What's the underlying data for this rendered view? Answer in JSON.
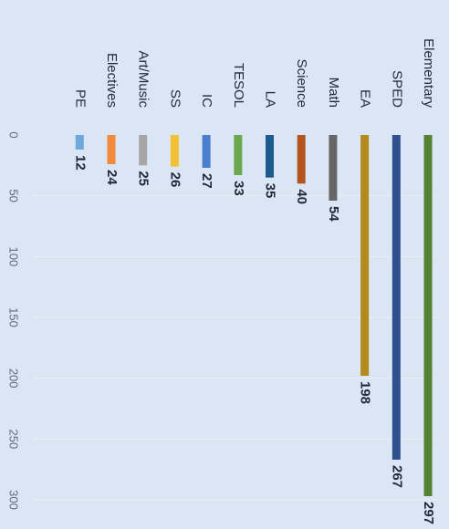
{
  "chart_data": {
    "type": "bar",
    "orientation": "horizontal",
    "display_rotation": "90deg-clockwise",
    "categories": [
      "Elementary",
      "SPED",
      "EA",
      "Math",
      "Science",
      "LA",
      "TESOL",
      "IC",
      "SS",
      "Art/Music",
      "Electives",
      "PE"
    ],
    "values": [
      297,
      267,
      198,
      54,
      40,
      35,
      33,
      27,
      26,
      25,
      24,
      12
    ],
    "colors": [
      "#548235",
      "#2f4f8f",
      "#b38a1e",
      "#666666",
      "#b3541e",
      "#1f5a8c",
      "#6aa84f",
      "#4a7fd0",
      "#f2c034",
      "#a6a6a6",
      "#f08a3c",
      "#6fa8dc"
    ],
    "xlim": [
      0,
      300
    ],
    "ticks": [
      "0",
      "50",
      "100",
      "150",
      "200",
      "250",
      "300"
    ],
    "grid": true,
    "data_labels": true,
    "title": "",
    "xlabel": "",
    "ylabel": ""
  }
}
